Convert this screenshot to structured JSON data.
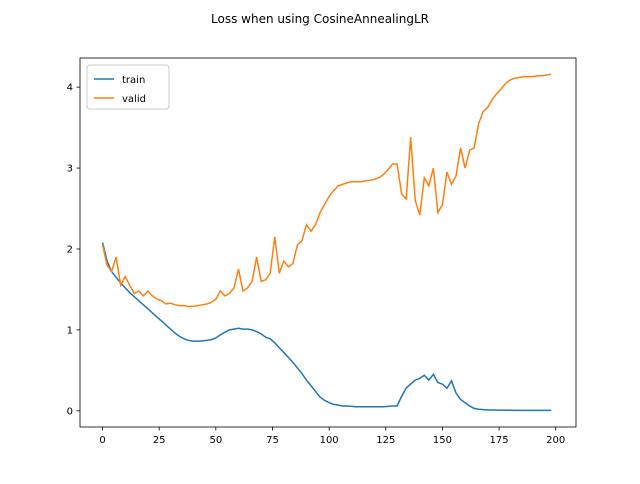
{
  "chart_data": {
    "type": "line",
    "title": "Loss when using CosineAnnealingLR",
    "x": [
      0,
      2,
      4,
      6,
      8,
      10,
      12,
      14,
      16,
      18,
      20,
      22,
      24,
      26,
      28,
      30,
      32,
      34,
      36,
      38,
      40,
      42,
      44,
      46,
      48,
      50,
      52,
      54,
      56,
      58,
      60,
      62,
      64,
      66,
      68,
      70,
      72,
      74,
      76,
      78,
      80,
      82,
      84,
      86,
      88,
      90,
      92,
      94,
      96,
      98,
      100,
      102,
      104,
      106,
      108,
      110,
      112,
      114,
      116,
      118,
      120,
      122,
      124,
      126,
      128,
      130,
      132,
      134,
      136,
      138,
      140,
      142,
      144,
      146,
      148,
      150,
      152,
      154,
      156,
      158,
      160,
      162,
      164,
      166,
      168,
      170,
      172,
      174,
      176,
      178,
      180,
      182,
      184,
      186,
      188,
      190,
      192,
      194,
      196,
      198
    ],
    "series": [
      {
        "name": "train",
        "color": "#1f77b4",
        "values": [
          2.08,
          1.85,
          1.72,
          1.65,
          1.58,
          1.52,
          1.46,
          1.41,
          1.36,
          1.31,
          1.26,
          1.21,
          1.16,
          1.11,
          1.06,
          1.01,
          0.96,
          0.92,
          0.89,
          0.87,
          0.86,
          0.86,
          0.865,
          0.87,
          0.88,
          0.9,
          0.94,
          0.97,
          1.0,
          1.01,
          1.02,
          1.01,
          1.01,
          1.0,
          0.98,
          0.95,
          0.91,
          0.89,
          0.84,
          0.78,
          0.72,
          0.66,
          0.6,
          0.53,
          0.46,
          0.38,
          0.31,
          0.24,
          0.17,
          0.13,
          0.1,
          0.08,
          0.07,
          0.06,
          0.06,
          0.055,
          0.05,
          0.05,
          0.05,
          0.05,
          0.05,
          0.05,
          0.05,
          0.055,
          0.06,
          0.06,
          0.18,
          0.28,
          0.33,
          0.38,
          0.4,
          0.44,
          0.38,
          0.45,
          0.35,
          0.33,
          0.28,
          0.37,
          0.22,
          0.14,
          0.1,
          0.06,
          0.03,
          0.02,
          0.015,
          0.01,
          0.01,
          0.008,
          0.008,
          0.007,
          0.007,
          0.006,
          0.006,
          0.006,
          0.005,
          0.005,
          0.005,
          0.005,
          0.005,
          0.005
        ]
      },
      {
        "name": "valid",
        "color": "#ff7f0e",
        "values": [
          2.05,
          1.8,
          1.72,
          1.9,
          1.55,
          1.66,
          1.55,
          1.45,
          1.48,
          1.42,
          1.48,
          1.42,
          1.38,
          1.36,
          1.32,
          1.33,
          1.31,
          1.3,
          1.3,
          1.29,
          1.29,
          1.3,
          1.31,
          1.32,
          1.34,
          1.38,
          1.48,
          1.42,
          1.45,
          1.52,
          1.75,
          1.48,
          1.52,
          1.6,
          1.9,
          1.6,
          1.62,
          1.7,
          2.15,
          1.7,
          1.85,
          1.78,
          1.82,
          2.05,
          2.1,
          2.3,
          2.22,
          2.3,
          2.45,
          2.55,
          2.65,
          2.72,
          2.78,
          2.8,
          2.82,
          2.83,
          2.83,
          2.83,
          2.84,
          2.85,
          2.86,
          2.88,
          2.92,
          2.98,
          3.05,
          3.05,
          2.68,
          2.62,
          3.38,
          2.6,
          2.42,
          2.88,
          2.78,
          3.0,
          2.45,
          2.55,
          2.95,
          2.8,
          2.9,
          3.25,
          3.0,
          3.22,
          3.25,
          3.55,
          3.7,
          3.75,
          3.85,
          3.92,
          3.98,
          4.05,
          4.09,
          4.11,
          4.12,
          4.13,
          4.13,
          4.13,
          4.14,
          4.14,
          4.15,
          4.16
        ]
      }
    ],
    "xlim": [
      -9.95,
      208.95
    ],
    "xticks": [
      0,
      25,
      50,
      75,
      100,
      125,
      150,
      175,
      200
    ],
    "ylim": [
      -0.2,
      4.36
    ],
    "yticks": [
      0,
      1,
      2,
      3,
      4
    ],
    "legend": "upper left",
    "grid": false
  }
}
